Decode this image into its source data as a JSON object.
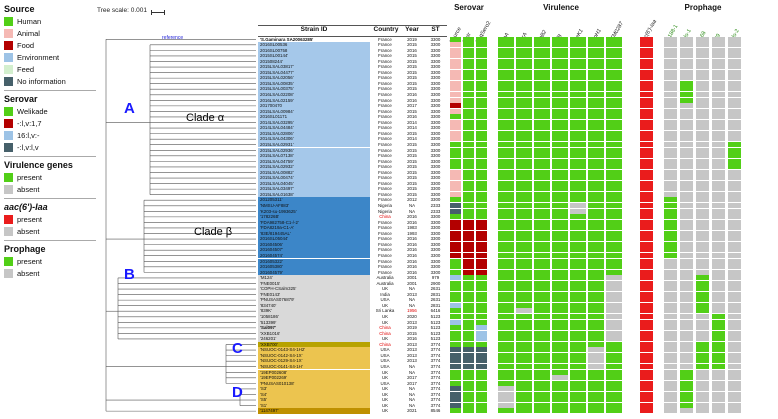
{
  "legend": {
    "sections": [
      {
        "title": "Source",
        "items": [
          {
            "label": "Human",
            "color": "#52cf17"
          },
          {
            "label": "Animal",
            "color": "#f5b9b4"
          },
          {
            "label": "Food",
            "color": "#b30000"
          },
          {
            "label": "Environment",
            "color": "#9dc3e6"
          },
          {
            "label": "Feed",
            "color": "#d3efce"
          },
          {
            "label": "No information",
            "color": "#46606a"
          }
        ]
      },
      {
        "title": "Serovar",
        "items": [
          {
            "label": "Welikade",
            "color": "#52cf17"
          },
          {
            "label": "-:l,v:1,7",
            "color": "#b30000"
          },
          {
            "label": "16:l,v:-",
            "color": "#9dc3e6"
          },
          {
            "label": "-:l,v:l,v",
            "color": "#46606a"
          }
        ]
      },
      {
        "title": "Virulence genes",
        "items": [
          {
            "label": "present",
            "color": "#52cf17"
          },
          {
            "label": "absent",
            "color": "#c6c6c6"
          }
        ]
      },
      {
        "title": "aac(6')-Iaa",
        "italic": true,
        "items": [
          {
            "label": "present",
            "color": "#ea1c1c"
          },
          {
            "label": "absent",
            "color": "#c6c6c6"
          }
        ]
      },
      {
        "title": "Prophage",
        "items": [
          {
            "label": "present",
            "color": "#52cf17"
          },
          {
            "label": "absent",
            "color": "#c6c6c6"
          }
        ]
      }
    ]
  },
  "tree": {
    "scale_label": "Tree scale: 0.001",
    "reference_label": "reference",
    "clade_a": "A",
    "clade_b": "B",
    "clade_c": "C",
    "clade_d": "D",
    "clade_alpha": "Clade α",
    "clade_beta": "Clade β"
  },
  "table": {
    "headers": [
      "Strain ID",
      "Country",
      "Year",
      "ST"
    ],
    "rows": [
      [
        "'S.Gaminara SA20063285'",
        "France",
        "2019",
        "3300",
        "w",
        "b",
        "h",
        "gg",
        "1111111",
        "1",
        "00000"
      ],
      [
        "2016SL00536",
        "France",
        "2015",
        "3300",
        "a",
        "",
        "a",
        "gg",
        "1111111",
        "1",
        "00000"
      ],
      [
        "2016SL00758",
        "France",
        "2016",
        "3300",
        "a",
        "",
        "a",
        "gg",
        "1111111",
        "1",
        "00000"
      ],
      [
        "2015SL00144'",
        "France",
        "2015",
        "3300",
        "a",
        "",
        "a",
        "gg",
        "1111111",
        "1",
        "00000"
      ],
      [
        "201508244'",
        "France",
        "2015",
        "3300",
        "a",
        "",
        "a",
        "gg",
        "1111111",
        "1",
        "00000"
      ],
      [
        "2015LSAL03817'",
        "France",
        "2015",
        "3300",
        "a",
        "",
        "a",
        "gg",
        "1111111",
        "1",
        "00000"
      ],
      [
        "2015LSAL04477'",
        "France",
        "2015",
        "3300",
        "a",
        "",
        "a",
        "gg",
        "1111111",
        "1",
        "00000"
      ],
      [
        "2015LSAL02056'",
        "France",
        "2015",
        "3300",
        "a",
        "",
        "a",
        "gg",
        "1111111",
        "1",
        "00000"
      ],
      [
        "2015LSAL00835'",
        "France",
        "2015",
        "3300",
        "a",
        "",
        "a",
        "gg",
        "1111111",
        "1",
        "01000"
      ],
      [
        "2015LSAL00375'",
        "France",
        "2015",
        "3300",
        "a",
        "",
        "a",
        "gg",
        "1111111",
        "1",
        "01000"
      ],
      [
        "2016LSAL02208'",
        "France",
        "2016",
        "3300",
        "a",
        "",
        "a",
        "gg",
        "1111111",
        "1",
        "01000"
      ],
      [
        "2016LSAL02159'",
        "France",
        "2016",
        "3300",
        "a",
        "",
        "a",
        "gg",
        "1111111",
        "1",
        "01000"
      ],
      [
        "201700470",
        "France",
        "2017",
        "3300",
        "a",
        "",
        "f",
        "gg",
        "1111111",
        "1",
        "00000"
      ],
      [
        "2015LSAL00984'",
        "France",
        "2015",
        "3300",
        "a",
        "",
        "a",
        "gg",
        "1111111",
        "1",
        "00000"
      ],
      [
        "2016SL01171",
        "France",
        "2016",
        "3300",
        "a",
        "",
        "h",
        "gg",
        "1111111",
        "1",
        "00000"
      ],
      [
        "2014LSAL03295'",
        "France",
        "2014",
        "3300",
        "a",
        "",
        "a",
        "gg",
        "1111111",
        "1",
        "00000"
      ],
      [
        "2014LSAL04484'",
        "France",
        "2014",
        "3300",
        "a",
        "",
        "a",
        "gg",
        "1111111",
        "1",
        "00000"
      ],
      [
        "2015LSAL02806'",
        "France",
        "2015",
        "3300",
        "a",
        "",
        "a",
        "gg",
        "1111111",
        "1",
        "00000"
      ],
      [
        "2014LSAL04306'",
        "France",
        "2014",
        "3300",
        "a",
        "",
        "a",
        "gg",
        "1111111",
        "1",
        "00000"
      ],
      [
        "2015LSAL02931'",
        "France",
        "2015",
        "3300",
        "a",
        "",
        "h",
        "gg",
        "1111111",
        "1",
        "00001"
      ],
      [
        "2015LSAL02936'",
        "France",
        "2015",
        "3300",
        "a",
        "",
        "h",
        "gg",
        "1111111",
        "1",
        "00001"
      ],
      [
        "2015LSAL07138'",
        "France",
        "2015",
        "3300",
        "a",
        "",
        "h",
        "gg",
        "1111111",
        "1",
        "00001"
      ],
      [
        "2015LSAL04759'",
        "France",
        "2015",
        "3300",
        "a",
        "",
        "h",
        "gg",
        "1111111",
        "1",
        "00001"
      ],
      [
        "2015LSAL02932'",
        "France",
        "2015",
        "3300",
        "a",
        "",
        "h",
        "gg",
        "1111111",
        "1",
        "00001"
      ],
      [
        "2015LSAL00882'",
        "France",
        "2015",
        "3300",
        "a",
        "",
        "a",
        "gg",
        "1111111",
        "1",
        "00000"
      ],
      [
        "2015LSAL00474'",
        "France",
        "2015",
        "3300",
        "a",
        "",
        "a",
        "gg",
        "1111111",
        "1",
        "00000"
      ],
      [
        "2015LSAL04045'",
        "France",
        "2015",
        "3300",
        "a",
        "",
        "a",
        "gg",
        "1111111",
        "1",
        "00000"
      ],
      [
        "2015LSAL03497'",
        "France",
        "2015",
        "3300",
        "a",
        "",
        "a",
        "gg",
        "1111111",
        "1",
        "00000"
      ],
      [
        "2015LSAL01638'",
        "France",
        "2015",
        "3300",
        "a",
        "",
        "a",
        "gg",
        "1111111",
        "1",
        "00000"
      ],
      [
        "201205311'",
        "France",
        "2012",
        "3300",
        "b",
        "",
        "h",
        "gg",
        "1111111",
        "1",
        "10000"
      ],
      [
        "'NMSU-AF883'",
        "Nigeria",
        "NA",
        "2333",
        "b",
        "",
        "n",
        "gg",
        "1111011",
        "1",
        "10000"
      ],
      [
        "'K203-su-1993625'",
        "Nigeria",
        "NA",
        "2333",
        "b",
        "",
        "n",
        "gg",
        "1111011",
        "1",
        "10000"
      ],
      [
        "'178226B'",
        "China",
        "2016",
        "3300",
        "b",
        "c",
        "h",
        "gg",
        "1111111",
        "1",
        "10000"
      ],
      [
        "'FDA982758-C1-/-2'",
        "France",
        "2016",
        "3300",
        "b",
        "",
        "f",
        "rr",
        "1111111",
        "1",
        "10000"
      ],
      [
        "'FDA8219a-C1-A'",
        "France",
        "1983",
        "3300",
        "b",
        "",
        "f",
        "rr",
        "1111111",
        "1",
        "10000"
      ],
      [
        "'83E/819445AL'",
        "France",
        "1993",
        "3300",
        "b",
        "",
        "f",
        "rr",
        "1111111",
        "1",
        "10000"
      ],
      [
        "2016SL05044'",
        "France",
        "2016",
        "3300",
        "b",
        "",
        "f",
        "rr",
        "1111111",
        "1",
        "10000"
      ],
      [
        "201604506'",
        "France",
        "2016",
        "3300",
        "b",
        "",
        "f",
        "rr",
        "1111111",
        "1",
        "10000"
      ],
      [
        "201604507'",
        "France",
        "2016",
        "3300",
        "b",
        "",
        "f",
        "rr",
        "1111111",
        "1",
        "10000"
      ],
      [
        "201604574'",
        "France",
        "2016",
        "3300",
        "b",
        "",
        "f",
        "rr",
        "1111111",
        "1",
        "10000"
      ],
      [
        "201605322'",
        "France",
        "2016",
        "3300",
        "b",
        "",
        "h",
        "rr",
        "1111111",
        "1",
        "00000"
      ],
      [
        "201605380'",
        "France",
        "2016",
        "3300",
        "b",
        "",
        "h",
        "rr",
        "1111111",
        "1",
        "00000"
      ],
      [
        "201604579'",
        "France",
        "2016",
        "3300",
        "b",
        "",
        "h",
        "rr",
        "1111111",
        "1",
        "00000"
      ],
      [
        "'M124'",
        "Australia",
        "2001",
        "979",
        "g",
        "",
        "e",
        "gg",
        "1111110",
        "1",
        "00100"
      ],
      [
        "'FNE0015'",
        "Australia",
        "2001",
        "2900",
        "g",
        "",
        "h",
        "gg",
        "1111110",
        "1",
        "00100"
      ],
      [
        "'COPH-CSalm325'",
        "UK",
        "NA",
        "2631",
        "g",
        "",
        "h",
        "gg",
        "1111110",
        "1",
        "00100"
      ],
      [
        "'FNE0143'",
        "India",
        "2013",
        "2831",
        "g",
        "",
        "h",
        "gg",
        "1111110",
        "1",
        "00100"
      ],
      [
        "'PNUSAS076879'",
        "USA",
        "NA",
        "2631",
        "g",
        "",
        "h",
        "gg",
        "1111110",
        "1",
        "00100"
      ],
      [
        "'834740'",
        "UK",
        "NA",
        "2831",
        "g",
        "",
        "e",
        "gg",
        "1111110",
        "1",
        "00100"
      ],
      [
        "'839K'",
        "Sri Lanka",
        "1956",
        "6416",
        "g",
        "y",
        "h",
        "gg",
        "1011110",
        "1",
        "00100"
      ],
      [
        "'1058186'",
        "UK",
        "2020",
        "5123",
        "g",
        "",
        "h",
        "gg",
        "1111110",
        "1",
        "00010"
      ],
      [
        "'513399'",
        "UK",
        "2013",
        "5123",
        "g",
        "",
        "e",
        "gg",
        "1111110",
        "1",
        "00010"
      ],
      [
        "'Sal097'",
        "China",
        "2019",
        "5123",
        "g",
        "bc",
        "h",
        "gl",
        "1111110",
        "1",
        "00010"
      ],
      [
        "'XXB1016'",
        "China",
        "2015",
        "5123",
        "g",
        "c",
        "h",
        "gl",
        "1111110",
        "1",
        "00010"
      ],
      [
        "'246201'",
        "UK",
        "2016",
        "5123",
        "g",
        "",
        "h",
        "gl",
        "1111110",
        "1",
        "00010"
      ],
      [
        "'XXB700'",
        "China",
        "2013",
        "3774",
        "o",
        "c",
        "h",
        "gg",
        "1111111",
        "1",
        "00110"
      ],
      [
        "'NSUOC-0143-S4-1H2'",
        "USA",
        "2013",
        "3774",
        "y",
        "",
        "n",
        "ss",
        "1111101",
        "1",
        "00110"
      ],
      [
        "'NSUOC-0142-S4-1X'",
        "USA",
        "2013",
        "3774",
        "y",
        "",
        "n",
        "ss",
        "1111101",
        "1",
        "00110"
      ],
      [
        "'NSUOC-0129-S4-1X'",
        "USA",
        "2013",
        "3774",
        "y",
        "",
        "n",
        "ss",
        "1111101",
        "1",
        "00110"
      ],
      [
        "'NSUOC-0141-S4-1H'",
        "USA",
        "NA",
        "3774",
        "y",
        "",
        "n",
        "ss",
        "1111101",
        "1",
        "00110"
      ],
      [
        "'19EP002608'",
        "UK",
        "NA",
        "3774",
        "y",
        "",
        "h",
        "gg",
        "1111111",
        "1",
        "01000"
      ],
      [
        "'19EP002269'",
        "UK",
        "2017",
        "3774",
        "y",
        "",
        "h",
        "gg",
        "1110111",
        "1",
        "01000"
      ],
      [
        "'PNUSAS010138'",
        "USA",
        "2017",
        "3774",
        "y",
        "",
        "h",
        "gg",
        "1111111",
        "1",
        "01000"
      ],
      [
        "'S3'",
        "UK",
        "NA",
        "3774",
        "y",
        "",
        "n",
        "gg",
        "0111111",
        "1",
        "01000"
      ],
      [
        "'S4'",
        "UK",
        "NA",
        "3774",
        "y",
        "",
        "n",
        "gg",
        "0111111",
        "1",
        "01000"
      ],
      [
        "'S5'",
        "UK",
        "NA",
        "3774",
        "y",
        "",
        "n",
        "gg",
        "0111111",
        "1",
        "01000"
      ],
      [
        "'S1'",
        "UK",
        "NA",
        "3774",
        "y",
        "",
        "n",
        "gg",
        "0111111",
        "1",
        "01000"
      ],
      [
        "'1147497'",
        "UK",
        "2021",
        "8546",
        "d",
        "",
        "h",
        "gg",
        "1111111",
        "1",
        "00000"
      ]
    ]
  },
  "heatmap": {
    "groups": [
      "Serovar",
      "Virulence",
      "Prophage"
    ],
    "source_label": "Source",
    "serovar_cols": [
      "Sistr",
      "SeqSero2"
    ],
    "virulence_cols": [
      "gipA",
      "avrA",
      "pipB2",
      "sifB",
      "sseK1",
      "sspH1",
      "STM0287"
    ],
    "resistance_col": "aac(6')-Iaa",
    "prophage_cols": [
      "X1188-1",
      "Fels-1",
      "X168",
      "X29",
      "Fels-2"
    ]
  },
  "colors": {
    "bands": {
      "w": "#ffffff",
      "a": "#a5c8ea",
      "b": "#3c86c8",
      "g": "#d9d9d9",
      "o": "#b7a200",
      "y": "#ecc44f",
      "d": "#bf9000"
    },
    "source": {
      "h": "#52cf17",
      "a": "#f5b9b4",
      "f": "#b30000",
      "e": "#9dc3e6",
      "d": "#d3efce",
      "n": "#46606a"
    },
    "serovar": {
      "g": "#52cf17",
      "r": "#b30000",
      "l": "#9dc3e6",
      "s": "#46606a"
    },
    "present": "#52cf17",
    "absent": "#c6c6c6",
    "aac_present": "#ea1c1c",
    "highlight_text": "#e00000",
    "clade_label": "#1a1aff"
  }
}
